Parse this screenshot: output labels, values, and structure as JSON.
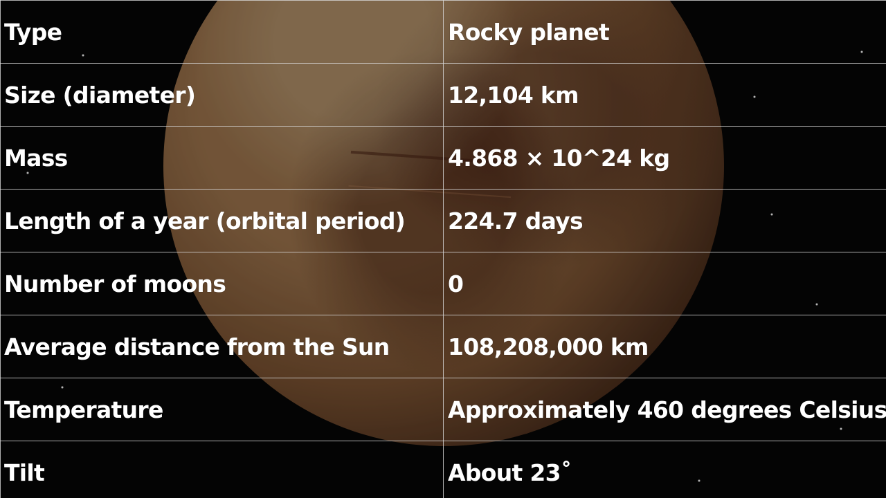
{
  "table": {
    "rows": [
      {
        "label": "Type",
        "value": "Rocky planet"
      },
      {
        "label": "Size (diameter)",
        "value": "12,104 km"
      },
      {
        "label": "Mass",
        "value": "4.868 × 10^24 kg"
      },
      {
        "label": "Length of a year (orbital period)",
        "value": "224.7 days"
      },
      {
        "label": "Number of moons",
        "value": "0"
      },
      {
        "label": "Average distance from the Sun",
        "value": "108,208,000 km"
      },
      {
        "label": "Temperature",
        "value": "Approximately 460 degrees Celsius"
      },
      {
        "label": "Tilt",
        "value": "About 23˚"
      }
    ]
  },
  "colors": {
    "text": "#ffffff",
    "grid": "#d7d7d7",
    "space": "#060606",
    "planet": "#b48454"
  }
}
